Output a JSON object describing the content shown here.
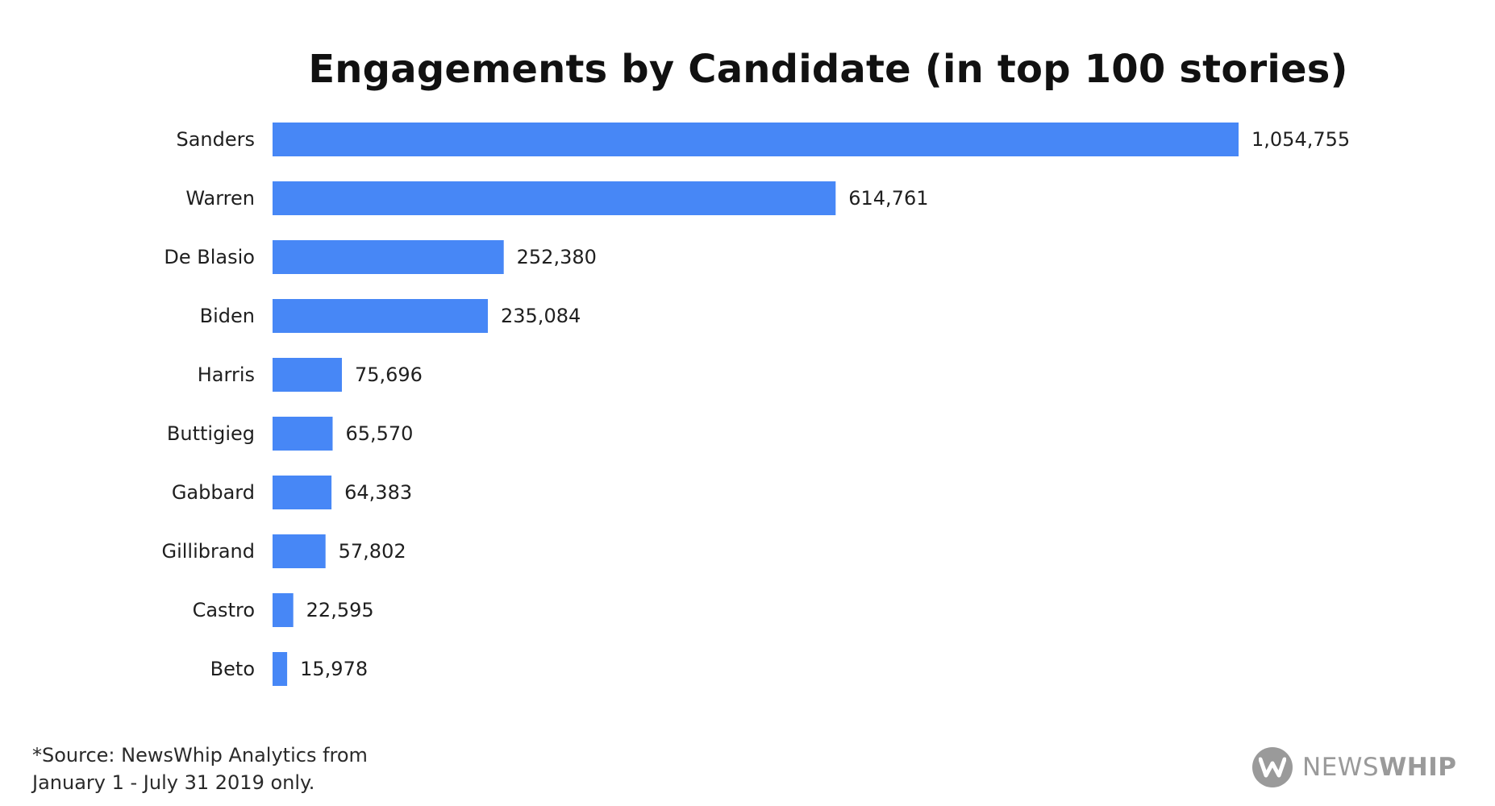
{
  "chart_data": {
    "type": "bar",
    "orientation": "horizontal",
    "title": "Engagements by Candidate (in top 100 stories)",
    "xlabel": "",
    "ylabel": "",
    "grid": false,
    "xlim": [
      0,
      1200000
    ],
    "categories": [
      "Sanders",
      "Warren",
      "De Blasio",
      "Biden",
      "Harris",
      "Buttigieg",
      "Gabbard",
      "Gillibrand",
      "Castro",
      "Beto"
    ],
    "values": [
      1054755,
      614761,
      252380,
      235084,
      75696,
      65570,
      64383,
      57802,
      22595,
      15978
    ],
    "value_labels": [
      "1,054,755",
      "614,761",
      "252,380",
      "235,084",
      "75,696",
      "65,570",
      "64,383",
      "57,802",
      "22,595",
      "15,978"
    ],
    "bar_color": "#4787F6"
  },
  "footnote": {
    "line1": "*Source: NewsWhip Analytics from",
    "line2": "January 1 - July 31 2019 only."
  },
  "logo": {
    "text_light": "NEWS",
    "text_bold": "WHIP",
    "color": "#9A9A9A"
  }
}
